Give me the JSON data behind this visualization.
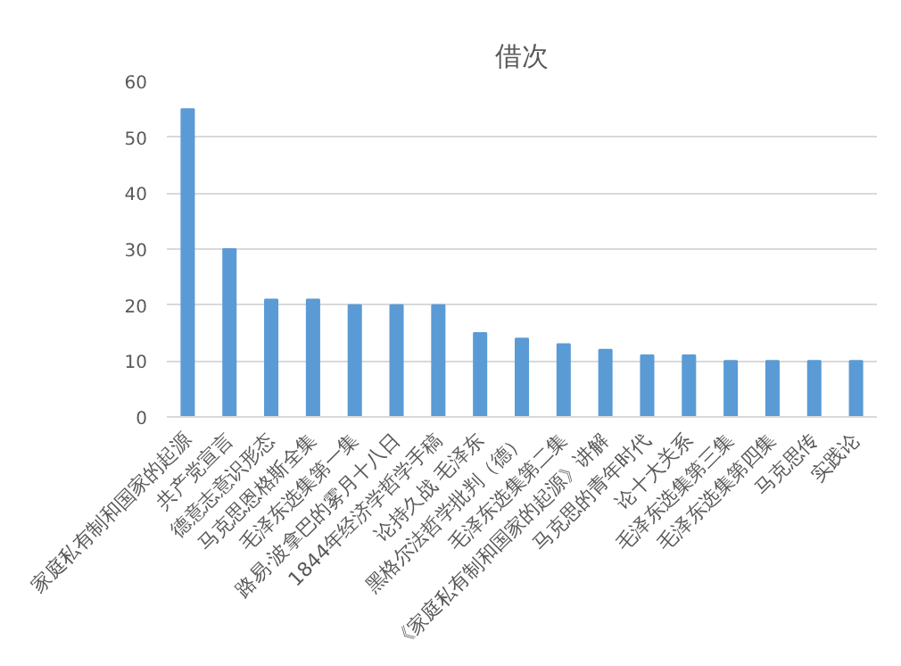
{
  "chart_data": {
    "type": "bar",
    "title": "借次",
    "categories": [
      "家庭私有制和国家的起源",
      "共产党宣言",
      "德意志意识形态",
      "马克思恩格斯全集",
      "毛泽东选集第一集",
      "路易·波拿巴的雾月十八日",
      "1844年经济学哲学手稿",
      "论持久战 毛泽东",
      "黑格尔法哲学批判（德）",
      "毛泽东选集第二集",
      "《家庭私有制和国家的起源》讲解",
      "马克思的青年时代",
      "论十大关系",
      "毛泽东选集第三集",
      "毛泽东选集第四集",
      "马克思传",
      "实践论"
    ],
    "values": [
      55,
      30,
      21,
      21,
      20,
      20,
      20,
      15,
      14,
      13,
      12,
      11,
      11,
      10,
      10,
      10,
      10
    ],
    "color": "#5b9bd5",
    "ylim": [
      0,
      60
    ],
    "yticks": [
      0,
      10,
      20,
      30,
      40,
      50,
      60
    ],
    "grid": "y"
  }
}
